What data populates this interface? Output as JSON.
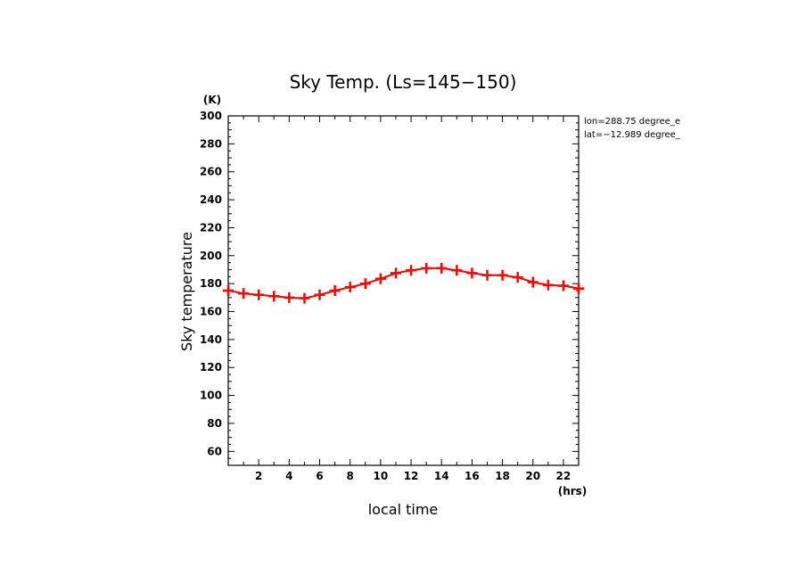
{
  "chart_data": {
    "type": "line",
    "title": "Sky Temp. (Ls=145−150)",
    "xlabel": "local time",
    "ylabel": "Sky temperature",
    "x_unit": "(hrs)",
    "y_unit": "(K)",
    "xlim": [
      0,
      23
    ],
    "ylim": [
      50,
      300
    ],
    "x_ticks": [
      2,
      4,
      6,
      8,
      10,
      12,
      14,
      16,
      18,
      20,
      22
    ],
    "y_ticks": [
      60,
      80,
      100,
      120,
      140,
      160,
      180,
      200,
      220,
      240,
      260,
      280,
      300
    ],
    "grid": false,
    "annotations": [
      "lon=288.75 degree_e",
      "lat=−12.989 degree_"
    ],
    "series": [
      {
        "color": "#ff0000",
        "marker": "plus",
        "x": [
          0,
          1,
          2,
          3,
          4,
          5,
          6,
          7,
          8,
          9,
          10,
          11,
          12,
          13,
          14,
          15,
          16,
          17,
          18,
          19,
          20,
          21,
          22,
          23
        ],
        "y": [
          175,
          173,
          172,
          171,
          170,
          169.5,
          172,
          175,
          177.5,
          180,
          183.5,
          187.5,
          189.5,
          191,
          191,
          189.5,
          187.5,
          186,
          186,
          184.5,
          181,
          179,
          178.5,
          176.5
        ]
      }
    ]
  }
}
